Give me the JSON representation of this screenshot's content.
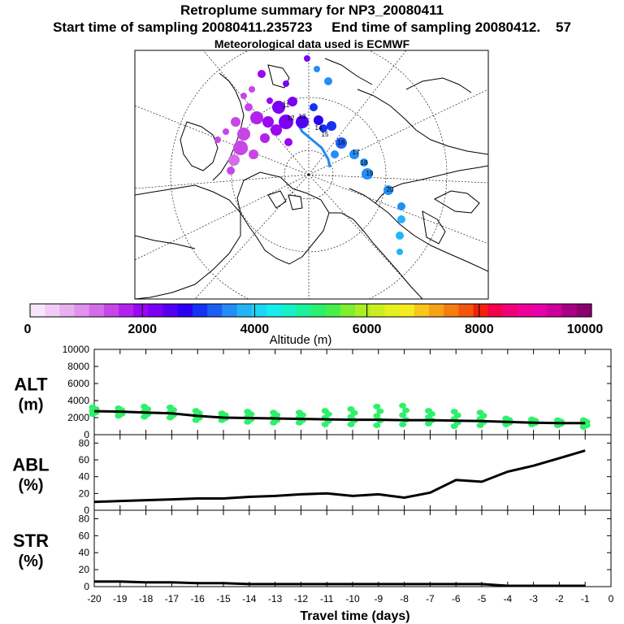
{
  "header": {
    "title": "Retroplume summary for NP3_20080411",
    "start_label": "Start time of sampling 20080411.235723",
    "end_label": "End time of sampling 20080412.",
    "end_suffix": "57",
    "met_label": "Meteorological data used is ECMWF"
  },
  "colorbar": {
    "label": "Altitude (m)",
    "ticks": [
      "0",
      "2000",
      "4000",
      "6000",
      "8000",
      "10000"
    ],
    "colors": [
      "#f6e6fb",
      "#f0cdf6",
      "#e7b0f1",
      "#df92ee",
      "#d36de9",
      "#c646e8",
      "#b222ec",
      "#9b06f3",
      "#7a00f3",
      "#5200f2",
      "#2b00f2",
      "#1533f2",
      "#1d5ff5",
      "#238ef7",
      "#23b4f7",
      "#1ed5f3",
      "#17ecef",
      "#17f0c8",
      "#1ef19c",
      "#2bf06d",
      "#46f048",
      "#7ef02f",
      "#a9ef24",
      "#cbef1e",
      "#e3f11e",
      "#f4ec20",
      "#f7c51c",
      "#f7a216",
      "#f67d12",
      "#f5560f",
      "#f2200f",
      "#f2004c",
      "#f00078",
      "#ef0097",
      "#e600a7",
      "#cb0098",
      "#a60086",
      "#8c0070"
    ]
  },
  "map_labels": {
    "cluster_numbers": [
      "11",
      "12",
      "13",
      "14",
      "15",
      "16",
      "17",
      "18",
      "19",
      "20"
    ]
  },
  "chart_data": [
    {
      "type": "line",
      "panel": "ALT",
      "ylabel": "ALT (m)",
      "ylabel_line1": "ALT",
      "ylabel_line2": "(m)",
      "ylim": [
        0,
        10000
      ],
      "yticks": [
        "0",
        "2000",
        "4000",
        "6000",
        "8000",
        "10000"
      ],
      "x": [
        -20,
        -19,
        -18,
        -17,
        -16,
        -15,
        -14,
        -13,
        -12,
        -11,
        -10,
        -9,
        -8,
        -7,
        -6,
        -5,
        -4,
        -3,
        -2,
        -1
      ],
      "series": [
        {
          "name": "median altitude",
          "values": [
            2750,
            2700,
            2600,
            2500,
            2200,
            2000,
            1950,
            1900,
            1850,
            1800,
            1750,
            1750,
            1700,
            1700,
            1650,
            1600,
            1500,
            1400,
            1350,
            1350
          ]
        }
      ],
      "spread": [
        [
          2400,
          3200
        ],
        [
          2200,
          3100
        ],
        [
          2100,
          3300
        ],
        [
          2000,
          3200
        ],
        [
          1700,
          2800
        ],
        [
          1700,
          2500
        ],
        [
          1500,
          2700
        ],
        [
          1400,
          2600
        ],
        [
          1400,
          2600
        ],
        [
          1200,
          2800
        ],
        [
          1200,
          3000
        ],
        [
          1100,
          3300
        ],
        [
          1200,
          3400
        ],
        [
          1300,
          2800
        ],
        [
          1000,
          2700
        ],
        [
          1100,
          2600
        ],
        [
          1200,
          1900
        ],
        [
          1200,
          1800
        ],
        [
          1100,
          1700
        ],
        [
          900,
          1700
        ]
      ]
    },
    {
      "type": "line",
      "panel": "ABL",
      "ylabel": "ABL (%)",
      "ylabel_line1": "ABL",
      "ylabel_line2": "(%)",
      "ylim": [
        0,
        90
      ],
      "yticks": [
        "0",
        "20",
        "40",
        "60",
        "80"
      ],
      "x": [
        -20,
        -19,
        -18,
        -17,
        -16,
        -15,
        -14,
        -13,
        -12,
        -11,
        -10,
        -9,
        -8,
        -7,
        -6,
        -5,
        -4,
        -3,
        -2,
        -1
      ],
      "series": [
        {
          "name": "ABL fraction",
          "values": [
            10,
            11,
            12,
            13,
            14,
            14,
            16,
            17,
            19,
            20,
            17,
            19,
            15,
            21,
            36,
            34,
            46,
            53,
            62,
            71
          ]
        }
      ]
    },
    {
      "type": "line",
      "panel": "STR",
      "ylabel": "STR (%)",
      "ylabel_line1": "STR",
      "ylabel_line2": "(%)",
      "ylim": [
        0,
        90
      ],
      "yticks": [
        "0",
        "20",
        "40",
        "60",
        "80"
      ],
      "x": [
        -20,
        -19,
        -18,
        -17,
        -16,
        -15,
        -14,
        -13,
        -12,
        -11,
        -10,
        -9,
        -8,
        -7,
        -6,
        -5,
        -4,
        -3,
        -2,
        -1
      ],
      "series": [
        {
          "name": "STR fraction",
          "values": [
            6,
            6,
            5,
            5,
            4,
            4,
            3,
            3,
            3,
            3,
            3,
            3,
            3,
            3,
            3,
            3,
            1,
            1,
            1,
            1
          ]
        }
      ],
      "xlabel": "Travel time (days)",
      "xticks": [
        "-20",
        "-19",
        "-18",
        "-17",
        "-16",
        "-15",
        "-14",
        "-13",
        "-12",
        "-11",
        "-10",
        "-9",
        "-8",
        "-7",
        "-6",
        "-5",
        "-4",
        "-3",
        "-2",
        "-1",
        "0"
      ]
    }
  ]
}
